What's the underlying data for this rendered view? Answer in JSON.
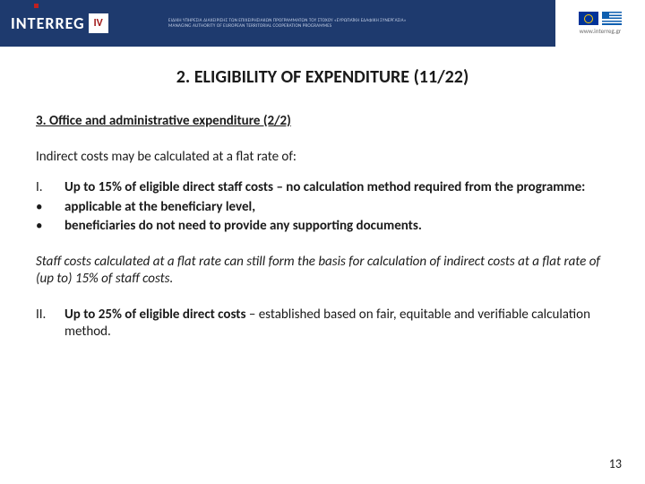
{
  "header": {
    "logo_main": "INTER",
    "logo_suffix": "REG",
    "iv": "IV",
    "tagline": "ΕΙΔΙΚΗ ΥΠΗΡΕΣΙΑ ΔΙΑΧΕΙΡΙΣΗΣ ΤΩΝ ΕΠΙΧΕΙΡΗΣΙΑΚΩΝ ΠΡΟΓΡΑΜΜΑΤΩΝ ΤΟΥ ΣΤΟΧΟΥ «ΕΥΡΩΠΑΪΚΗ ΕΔΑΦΙΚΗ ΣΥΝΕΡΓΑΣΙΑ»",
    "tagline2": "MANAGING AUTHORITY OF EUROPEAN TERRITORIAL COOPERATION PROGRAMMES",
    "url": "www.interreg.gr"
  },
  "title": "2. ELIGIBILITY OF EXPENDITURE (11/22)",
  "subtitle": "3. Office and administrative expenditure (2/2)",
  "intro": "Indirect costs may be calculated at a flat rate of:",
  "list1": {
    "marker": "I.",
    "bold_lead": "Up to 15% of eligible direct staff costs",
    "rest": " – no calculation method required from the programme:",
    "bullet1": "applicable at the beneficiary level,",
    "bullet2": "beneficiaries do not need to provide any supporting documents."
  },
  "italic_para": "Staff costs calculated at a flat rate can still form the basis for calculation of indirect costs at a flat rate of (up to) 15% of staff costs.",
  "list2": {
    "marker": "II.",
    "bold_lead": "Up to 25% of eligible direct costs",
    "rest": " – established based on fair, equitable and verifiable calculation method."
  },
  "page_number": "13",
  "colors": {
    "header_bg": "#1e3a6e",
    "accent_red": "#a01818",
    "text": "#1a1a1a"
  }
}
